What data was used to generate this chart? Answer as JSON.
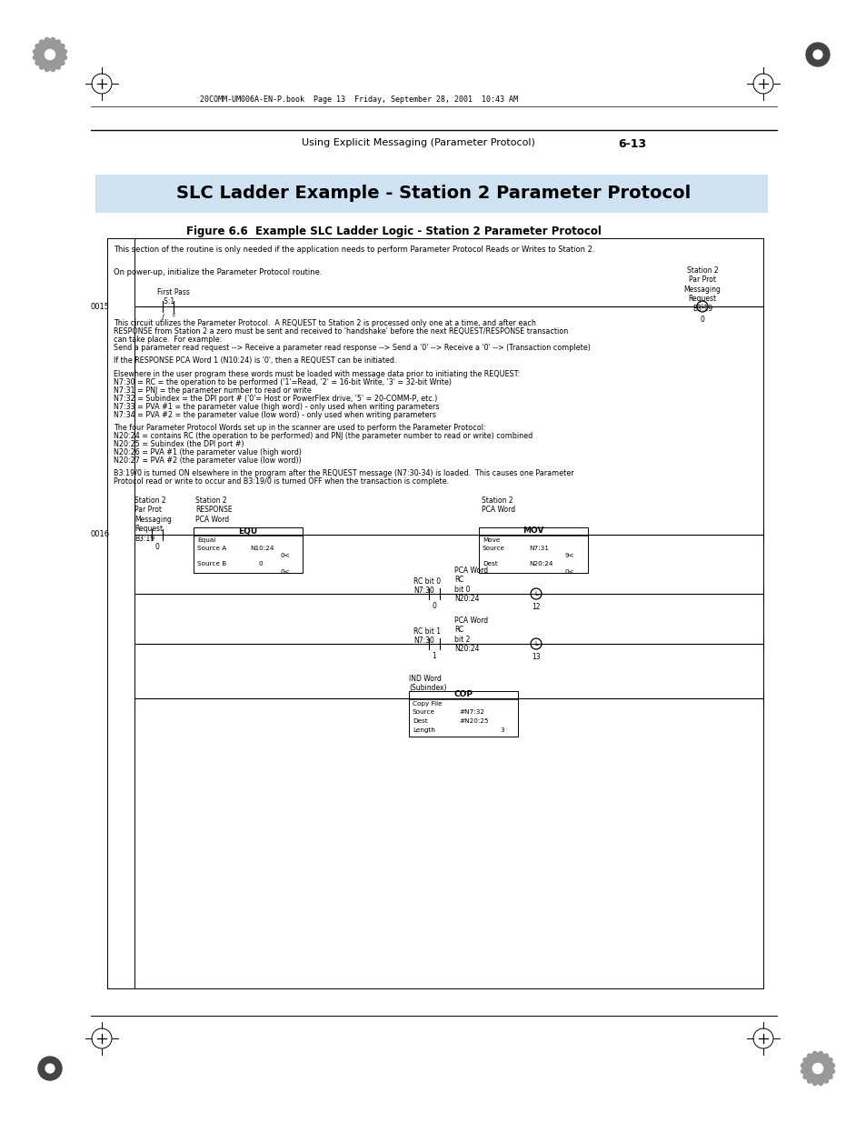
{
  "page_bg": "#ffffff",
  "header_line_text": "20COMM-UM006A-EN-P.book  Page 13  Friday, September 28, 2001  10:43 AM",
  "footer_header_text": "Using Explicit Messaging (Parameter Protocol)",
  "footer_header_num": "6-13",
  "title_text": "SLC Ladder Example - Station 2 Parameter Protocol",
  "figure_label": "Figure 6.6  Example SLC Ladder Logic - Station 2 Parameter Protocol",
  "box_text_intro": "This section of the routine is only needed if the application needs to perform Parameter Protocol Reads or Writes to Station 2.",
  "on_power_up_text": "On power-up, initialize the Parameter Protocol routine.",
  "circuit_line1": "This circuit utilizes the Parameter Protocol.  A REQUEST to Station 2 is processed only one at a time, and after each",
  "circuit_line2": "RESPONSE from Station 2 a zero must be sent and received to 'handshake' before the next REQUEST/RESPONSE transaction",
  "circuit_line3": "can take place.  For example:",
  "circuit_line4": "Send a parameter read request --> Receive a parameter read response --> Send a '0' --> Receive a '0' --> (Transaction complete)",
  "response_line": "If the RESPONSE PCA Word 1 (N10:24) is '0', then a REQUEST can be initiated.",
  "elsewhere_line0": "Elsewhere in the user program these words must be loaded with message data prior to initiating the REQUEST:",
  "elsewhere_line1": "N7:30 = RC = the operation to be performed ('1'=Read, '2' = 16-bit Write, '3' = 32-bit Write)",
  "elsewhere_line2": "N7:31 = PNJ = the parameter number to read or write",
  "elsewhere_line3": "N7:32 = Subindex = the DPI port # ('0'= Host or PowerFlex drive, '5' = 20-COMM-P, etc.)",
  "elsewhere_line4": "N7:33 = PVA #1 = the parameter value (high word) - only used when writing parameters",
  "elsewhere_line5": "N7:34 = PVA #2 = the parameter value (low word) - only used when writing parameters",
  "four_words_line0": "The four Parameter Protocol Words set up in the scanner are used to perform the Parameter Protocol:",
  "four_words_line1": "N20:24 = contains RC (the operation to be performed) and PNJ (the parameter number to read or write) combined",
  "four_words_line2": "N20:25 = Subindex (the DPI port #)",
  "four_words_line3": "N20:26 = PVA #1 (the parameter value (high word)",
  "four_words_line4": "N20:27 = PVA #2 (the parameter value (low word))",
  "b3_line1": "B3:19/0 is turned ON elsewhere in the program after the REQUEST message (N7:30-34) is loaded.  This causes one Parameter",
  "b3_line2": "Protocol read or write to occur and B3:19/0 is turned OFF when the transaction is complete."
}
